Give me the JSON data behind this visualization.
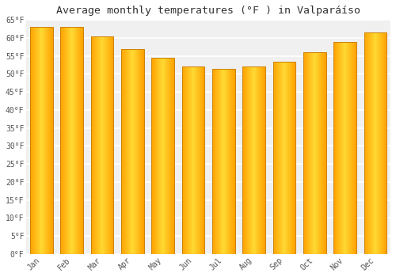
{
  "title": "Average monthly temperatures (°F ) in Valparáíso",
  "months": [
    "Jan",
    "Feb",
    "Mar",
    "Apr",
    "May",
    "Jun",
    "Jul",
    "Aug",
    "Sep",
    "Oct",
    "Nov",
    "Dec"
  ],
  "values": [
    63,
    63,
    60.5,
    57,
    54.5,
    52,
    51.5,
    52,
    53.5,
    56,
    59,
    61.5
  ],
  "bar_color_center": "#FFD060",
  "bar_color_edge": "#F5A000",
  "bar_outline_color": "#CC8000",
  "ylim": [
    0,
    65
  ],
  "ytick_step": 5,
  "background_color": "#ffffff",
  "plot_bg_color": "#f0f0f0",
  "grid_color": "#ffffff",
  "title_fontsize": 9.5,
  "tick_fontsize": 7,
  "bar_width": 0.75
}
